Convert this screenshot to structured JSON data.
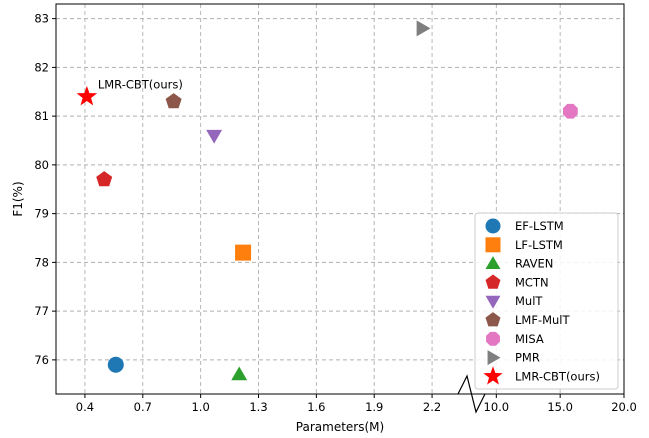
{
  "chart_data": {
    "type": "scatter",
    "xlabel": "Parameters(M)",
    "ylabel": "F1(%)",
    "x_axis": {
      "broken": true,
      "left_segment": {
        "range": [
          0.25,
          2.35
        ],
        "ticks": [
          0.4,
          0.7,
          1.0,
          1.3,
          1.6,
          1.9,
          2.2
        ]
      },
      "right_segment": {
        "range": [
          8.8,
          20.0
        ],
        "ticks": [
          10.0,
          15.0,
          20.0
        ]
      },
      "tick_labels": [
        "0.4",
        "0.7",
        "1.0",
        "1.3",
        "1.6",
        "1.9",
        "2.2",
        "10.0",
        "15.0",
        "20.0"
      ]
    },
    "ylim": [
      75.3,
      83.3
    ],
    "y_ticks": [
      76,
      77,
      78,
      79,
      80,
      81,
      82,
      83
    ],
    "grid": true,
    "legend_position": "bottom-right",
    "series": [
      {
        "name": "EF-LSTM",
        "x": 0.56,
        "y": 75.9,
        "color": "#1f77b4",
        "marker": "circle"
      },
      {
        "name": "LF-LSTM",
        "x": 1.22,
        "y": 78.2,
        "color": "#ff7f0e",
        "marker": "square"
      },
      {
        "name": "RAVEN",
        "x": 1.2,
        "y": 75.7,
        "color": "#2ca02c",
        "marker": "triangle-up"
      },
      {
        "name": "MCTN",
        "x": 0.5,
        "y": 79.7,
        "color": "#d62728",
        "marker": "pentagon"
      },
      {
        "name": "MulT",
        "x": 1.07,
        "y": 80.6,
        "color": "#9467bd",
        "marker": "triangle-down"
      },
      {
        "name": "LMF-MulT",
        "x": 0.86,
        "y": 81.3,
        "color": "#8c564b",
        "marker": "pentagon"
      },
      {
        "name": "MISA",
        "x": 15.8,
        "y": 81.1,
        "color": "#e377c2",
        "marker": "octagon"
      },
      {
        "name": "PMR",
        "x": 2.15,
        "y": 82.8,
        "color": "#7f7f7f",
        "marker": "triangle-right"
      },
      {
        "name": "LMR-CBT(ours)",
        "x": 0.41,
        "y": 81.4,
        "color": "#ff0000",
        "marker": "star"
      }
    ],
    "annotations": [
      {
        "text": "LMR-CBT(ours)",
        "x": 0.41,
        "y": 81.4
      }
    ]
  }
}
